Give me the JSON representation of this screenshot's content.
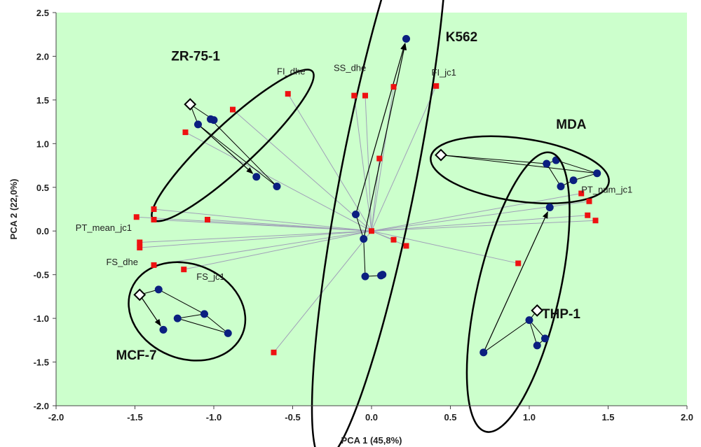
{
  "chart_data": {
    "type": "scatter",
    "title": "",
    "xlabel": "PCA 1 (45,8%)",
    "ylabel": "PCA 2 (22,0%)",
    "xlim": [
      -2.0,
      2.0
    ],
    "ylim": [
      -2.0,
      2.5
    ],
    "x_ticks": [
      "-2.0",
      "-1.5",
      "-1.0",
      "-0.5",
      "0.0",
      "0.5",
      "1.0",
      "1.5",
      "2.0"
    ],
    "y_ticks": [
      "-2.0",
      "-1.5",
      "-1.0",
      "-0.5",
      "0.0",
      "0.5",
      "1.0",
      "1.5",
      "2.0",
      "2.5"
    ],
    "grid": false,
    "colors": {
      "plot_background": "#ccffcc",
      "cell_points": "#0b1f80",
      "variable_points": "#ee1111",
      "loading_lines": "#a0a0b8",
      "ellipse": "#000000"
    },
    "groups": [
      {
        "name": "ZR-75-1",
        "label": "ZR-75-1",
        "centroid": [
          -1.15,
          1.45
        ],
        "points": [
          [
            -1.1,
            1.22
          ],
          [
            -1.0,
            1.27
          ],
          [
            -1.02,
            1.28
          ],
          [
            -0.73,
            0.62
          ],
          [
            -0.6,
            0.51
          ]
        ],
        "ellipse": {
          "cx": -0.88,
          "cy": 0.98,
          "rx": 0.69,
          "ry": 0.14,
          "angle_deg": -43
        }
      },
      {
        "name": "K562",
        "label": "K562",
        "centroid": null,
        "points": [
          [
            0.22,
            2.2
          ],
          [
            -0.1,
            0.19
          ],
          [
            -0.05,
            -0.09
          ],
          [
            -0.04,
            -0.52
          ],
          [
            0.06,
            -0.51
          ],
          [
            0.07,
            -0.5
          ]
        ],
        "ellipse": {
          "cx": 0.05,
          "cy": 0.68,
          "rx": 1.87,
          "ry": 0.24,
          "angle_deg": -79
        }
      },
      {
        "name": "MDA",
        "label": "MDA",
        "centroid": [
          0.44,
          0.87
        ],
        "points": [
          [
            1.11,
            0.77
          ],
          [
            1.17,
            0.81
          ],
          [
            1.28,
            0.58
          ],
          [
            1.2,
            0.51
          ],
          [
            1.43,
            0.66
          ]
        ],
        "ellipse": {
          "cx": 0.94,
          "cy": 0.7,
          "rx": 0.57,
          "ry": 0.2,
          "angle_deg": 8
        }
      },
      {
        "name": "THP-1",
        "label": "THP-1",
        "centroid": [
          1.05,
          -0.91
        ],
        "points": [
          [
            1.13,
            0.27
          ],
          [
            0.71,
            -1.39
          ],
          [
            1.0,
            -1.02
          ],
          [
            1.05,
            -1.31
          ],
          [
            1.1,
            -1.23
          ]
        ],
        "ellipse": {
          "cx": 0.93,
          "cy": -0.7,
          "rx": 0.91,
          "ry": 0.26,
          "angle_deg": -77
        }
      },
      {
        "name": "MCF-7",
        "label": "MCF-7",
        "centroid": [
          -1.47,
          -0.73
        ],
        "points": [
          [
            -1.35,
            -0.67
          ],
          [
            -1.23,
            -1.0
          ],
          [
            -1.06,
            -0.95
          ],
          [
            -1.32,
            -1.13
          ],
          [
            -0.91,
            -1.17
          ]
        ],
        "ellipse": {
          "cx": -1.17,
          "cy": -0.92,
          "rx": 0.38,
          "ry": 0.3,
          "angle_deg": 22
        }
      }
    ],
    "variables": {
      "labels": [
        "FI_dhe",
        "SS_dhe",
        "FI_jc1",
        "PT_num_jc1",
        "PT_mean_jc1",
        "FS_dhe",
        "FS_jc1"
      ],
      "points": [
        [
          -0.53,
          1.57
        ],
        [
          -0.11,
          1.55
        ],
        [
          -0.04,
          1.55
        ],
        [
          0.14,
          1.65
        ],
        [
          0.41,
          1.66
        ],
        [
          0.05,
          0.83
        ],
        [
          -0.88,
          1.39
        ],
        [
          -1.18,
          1.13
        ],
        [
          -1.49,
          0.16
        ],
        [
          -1.38,
          0.25
        ],
        [
          -1.38,
          0.13
        ],
        [
          -1.04,
          0.13
        ],
        [
          -1.47,
          -0.13
        ],
        [
          -1.47,
          -0.19
        ],
        [
          -1.38,
          -0.39
        ],
        [
          -1.19,
          -0.44
        ],
        [
          -0.62,
          -1.39
        ],
        [
          0.14,
          -0.1
        ],
        [
          0.22,
          -0.17
        ],
        [
          0.93,
          -0.37
        ],
        [
          1.33,
          0.43
        ],
        [
          1.38,
          0.34
        ],
        [
          1.37,
          0.18
        ],
        [
          1.42,
          0.12
        ]
      ]
    }
  }
}
